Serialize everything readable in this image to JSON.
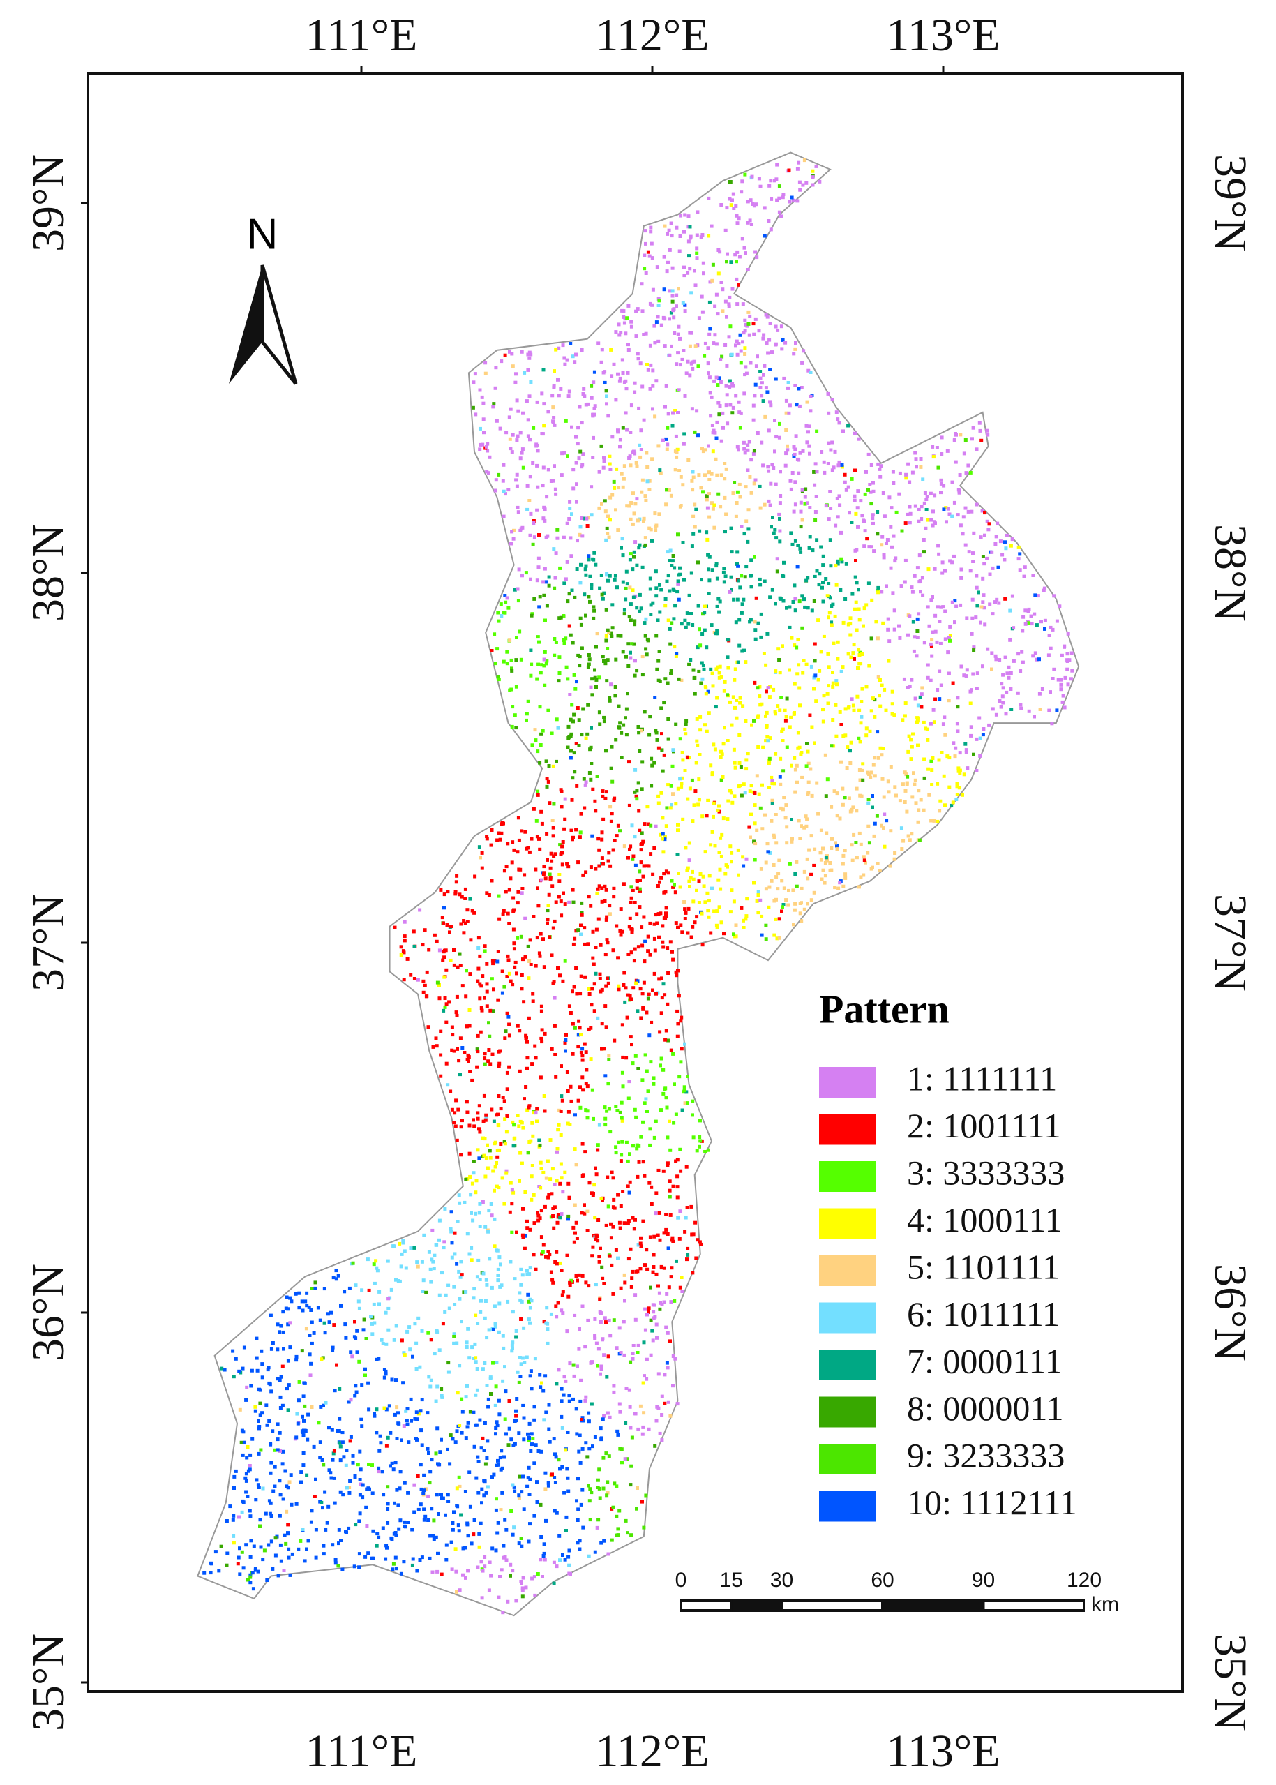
{
  "graticule": {
    "longitudes": [
      {
        "value": 111,
        "label": "111°E"
      },
      {
        "value": 112,
        "label": "112°E"
      },
      {
        "value": 113,
        "label": "113°E"
      }
    ],
    "latitudes": [
      {
        "value": 39,
        "label": "39°N"
      },
      {
        "value": 38,
        "label": "38°N"
      },
      {
        "value": 37,
        "label": "37°N"
      },
      {
        "value": 36,
        "label": "36°N"
      },
      {
        "value": 35,
        "label": "35°N"
      }
    ]
  },
  "north_arrow": "N",
  "legend": {
    "title": "Pattern",
    "items": [
      {
        "label": "1: 1111111",
        "color": "#d580f2"
      },
      {
        "label": "2: 1001111",
        "color": "#ff0000"
      },
      {
        "label": "3: 3333333",
        "color": "#55ff00"
      },
      {
        "label": "4: 1000111",
        "color": "#ffff00"
      },
      {
        "label": "5: 1101111",
        "color": "#ffd280"
      },
      {
        "label": "6: 1011111",
        "color": "#73dfff"
      },
      {
        "label": "7: 0000111",
        "color": "#00a884"
      },
      {
        "label": "8: 0000011",
        "color": "#38a800"
      },
      {
        "label": "9: 3233333",
        "color": "#4ce600"
      },
      {
        "label": "10: 1112111",
        "color": "#0055ff"
      }
    ]
  },
  "scale_bar": {
    "ticks": [
      0,
      15,
      30,
      60,
      90,
      120
    ],
    "unit": "km"
  }
}
